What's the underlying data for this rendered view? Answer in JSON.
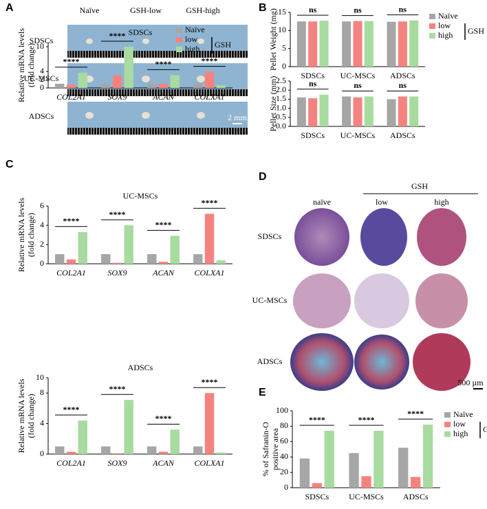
{
  "panel_labels": [
    "A",
    "B",
    "C",
    "D",
    "E"
  ],
  "panel_a": {
    "columns": [
      "Naïve",
      "GSH-low",
      "GSH-high"
    ],
    "rows": [
      "SDSCs",
      "UC-MSCs",
      "ADSCs"
    ],
    "scale_bar": "2 mm"
  },
  "panel_d": {
    "group_label": "GSH",
    "columns": [
      "naïve",
      "low",
      "high"
    ],
    "rows": [
      "SDSCs",
      "UC-MSCs",
      "ADSCs"
    ],
    "scale_bar": "500 µm"
  },
  "chart_data": [
    {
      "type": "bar",
      "y_label": [
        "Pellet Weight (mg)"
      ],
      "categories": [
        "SDSCs",
        "UC-MSCs",
        "ADSCs"
      ],
      "series": [
        {
          "name": "Naïve",
          "color": "#a6a6a6",
          "values": [
            12.5,
            12.5,
            12.4
          ]
        },
        {
          "name": "low",
          "color": "#f4837f",
          "values": [
            12.5,
            12.6,
            12.5
          ]
        },
        {
          "name": "high",
          "color": "#a8dba0",
          "values": [
            12.7,
            12.6,
            12.8
          ]
        }
      ],
      "ylim": [
        0,
        15
      ],
      "yticks": [
        0,
        5,
        10,
        15
      ],
      "annotations": [
        "ns",
        "ns",
        "ns"
      ],
      "legend": "outside right",
      "legend_group": "GSH"
    },
    {
      "type": "bar",
      "y_label": [
        "Pellet Size (mm)"
      ],
      "categories": [
        "SDSCs",
        "UC-MSCs",
        "ADSCs"
      ],
      "series": [
        {
          "color": "#a6a6a6",
          "values": [
            1.6,
            1.65,
            1.5
          ]
        },
        {
          "color": "#f4837f",
          "values": [
            1.55,
            1.6,
            1.65
          ]
        },
        {
          "color": "#a8dba0",
          "values": [
            1.75,
            1.65,
            1.65
          ]
        }
      ],
      "ylim": [
        0,
        2.5
      ],
      "yticks": [
        {
          "value": 0,
          "label": "0.0"
        },
        {
          "value": 0.5,
          "label": "0.5"
        },
        {
          "value": 1,
          "label": "1.0"
        },
        {
          "value": 1.5,
          "label": "1.5"
        },
        {
          "value": 2,
          "label": "2.0"
        },
        {
          "value": 2.5,
          "label": "2.5"
        }
      ],
      "annotations": [
        "ns",
        "ns",
        "ns"
      ]
    },
    {
      "type": "bar",
      "title": "SDSCs",
      "y_label": [
        "Relative mRNA levels",
        "(fold change)"
      ],
      "categories": [
        "COL2A1",
        "SOX9",
        "ACAN",
        "COLXA1"
      ],
      "series": [
        {
          "name": "Naïve",
          "color": "#a6a6a6",
          "values": [
            1.0,
            1.0,
            1.0,
            1.0
          ]
        },
        {
          "name": "low",
          "color": "#f4837f",
          "values": [
            0.8,
            3.0,
            1.0,
            3.9
          ]
        },
        {
          "name": "high",
          "color": "#a8dba0",
          "values": [
            3.7,
            10.0,
            3.1,
            0.6
          ]
        }
      ],
      "ylim": [
        0,
        11
      ],
      "yticks": [
        0,
        2,
        4,
        10
      ],
      "annotations": [
        "****",
        "****",
        "****",
        "****"
      ],
      "legend": "upper right",
      "legend_group": "GSH"
    },
    {
      "type": "bar",
      "title": "UC-MSCs",
      "y_label": [
        "Relative mRNA levels",
        "(fold change)"
      ],
      "categories": [
        "COL2A1",
        "SOX9",
        "ACAN",
        "COLXA1"
      ],
      "series": [
        {
          "color": "#a6a6a6",
          "values": [
            1.0,
            1.0,
            1.0,
            1.0
          ]
        },
        {
          "color": "#f4837f",
          "values": [
            0.45,
            0.1,
            0.2,
            5.2
          ]
        },
        {
          "color": "#a8dba0",
          "values": [
            3.3,
            4.0,
            2.9,
            0.35
          ]
        }
      ],
      "ylim": [
        0,
        6
      ],
      "yticks": [
        0,
        2,
        4,
        6
      ],
      "annotations": [
        "****",
        "****",
        "****",
        "****"
      ]
    },
    {
      "type": "bar",
      "title": "ADSCs",
      "y_label": [
        "Relative mRNA levels",
        "(fold change)"
      ],
      "categories": [
        "COL2A1",
        "SOX9",
        "ACAN",
        "COLXA1"
      ],
      "series": [
        {
          "color": "#a6a6a6",
          "values": [
            1.0,
            1.0,
            1.0,
            1.0
          ]
        },
        {
          "color": "#f4837f",
          "values": [
            0.3,
            0.1,
            0.3,
            8.0
          ]
        },
        {
          "color": "#a8dba0",
          "values": [
            4.4,
            7.1,
            3.2,
            0.2
          ]
        }
      ],
      "ylim": [
        0,
        10
      ],
      "yticks": [
        0,
        4,
        8,
        10
      ],
      "annotations": [
        "****",
        "****",
        "****",
        "****"
      ]
    },
    {
      "type": "bar",
      "y_label": [
        "% of Safranin-O",
        "positive area"
      ],
      "categories": [
        "SDSCs",
        "UC-MSCs",
        "ADSCs"
      ],
      "series": [
        {
          "name": "Naïve",
          "color": "#a6a6a6",
          "values": [
            38,
            45,
            52
          ]
        },
        {
          "name": "low",
          "color": "#f4837f",
          "values": [
            6,
            15,
            14
          ]
        },
        {
          "name": "high",
          "color": "#a8dba0",
          "values": [
            74,
            74,
            82
          ]
        }
      ],
      "ylim": [
        0,
        100
      ],
      "yticks": [
        0,
        20,
        40,
        60,
        80,
        100
      ],
      "annotations": [
        "****",
        "****",
        "****"
      ],
      "legend": "outside right",
      "legend_group": "GSH"
    }
  ]
}
